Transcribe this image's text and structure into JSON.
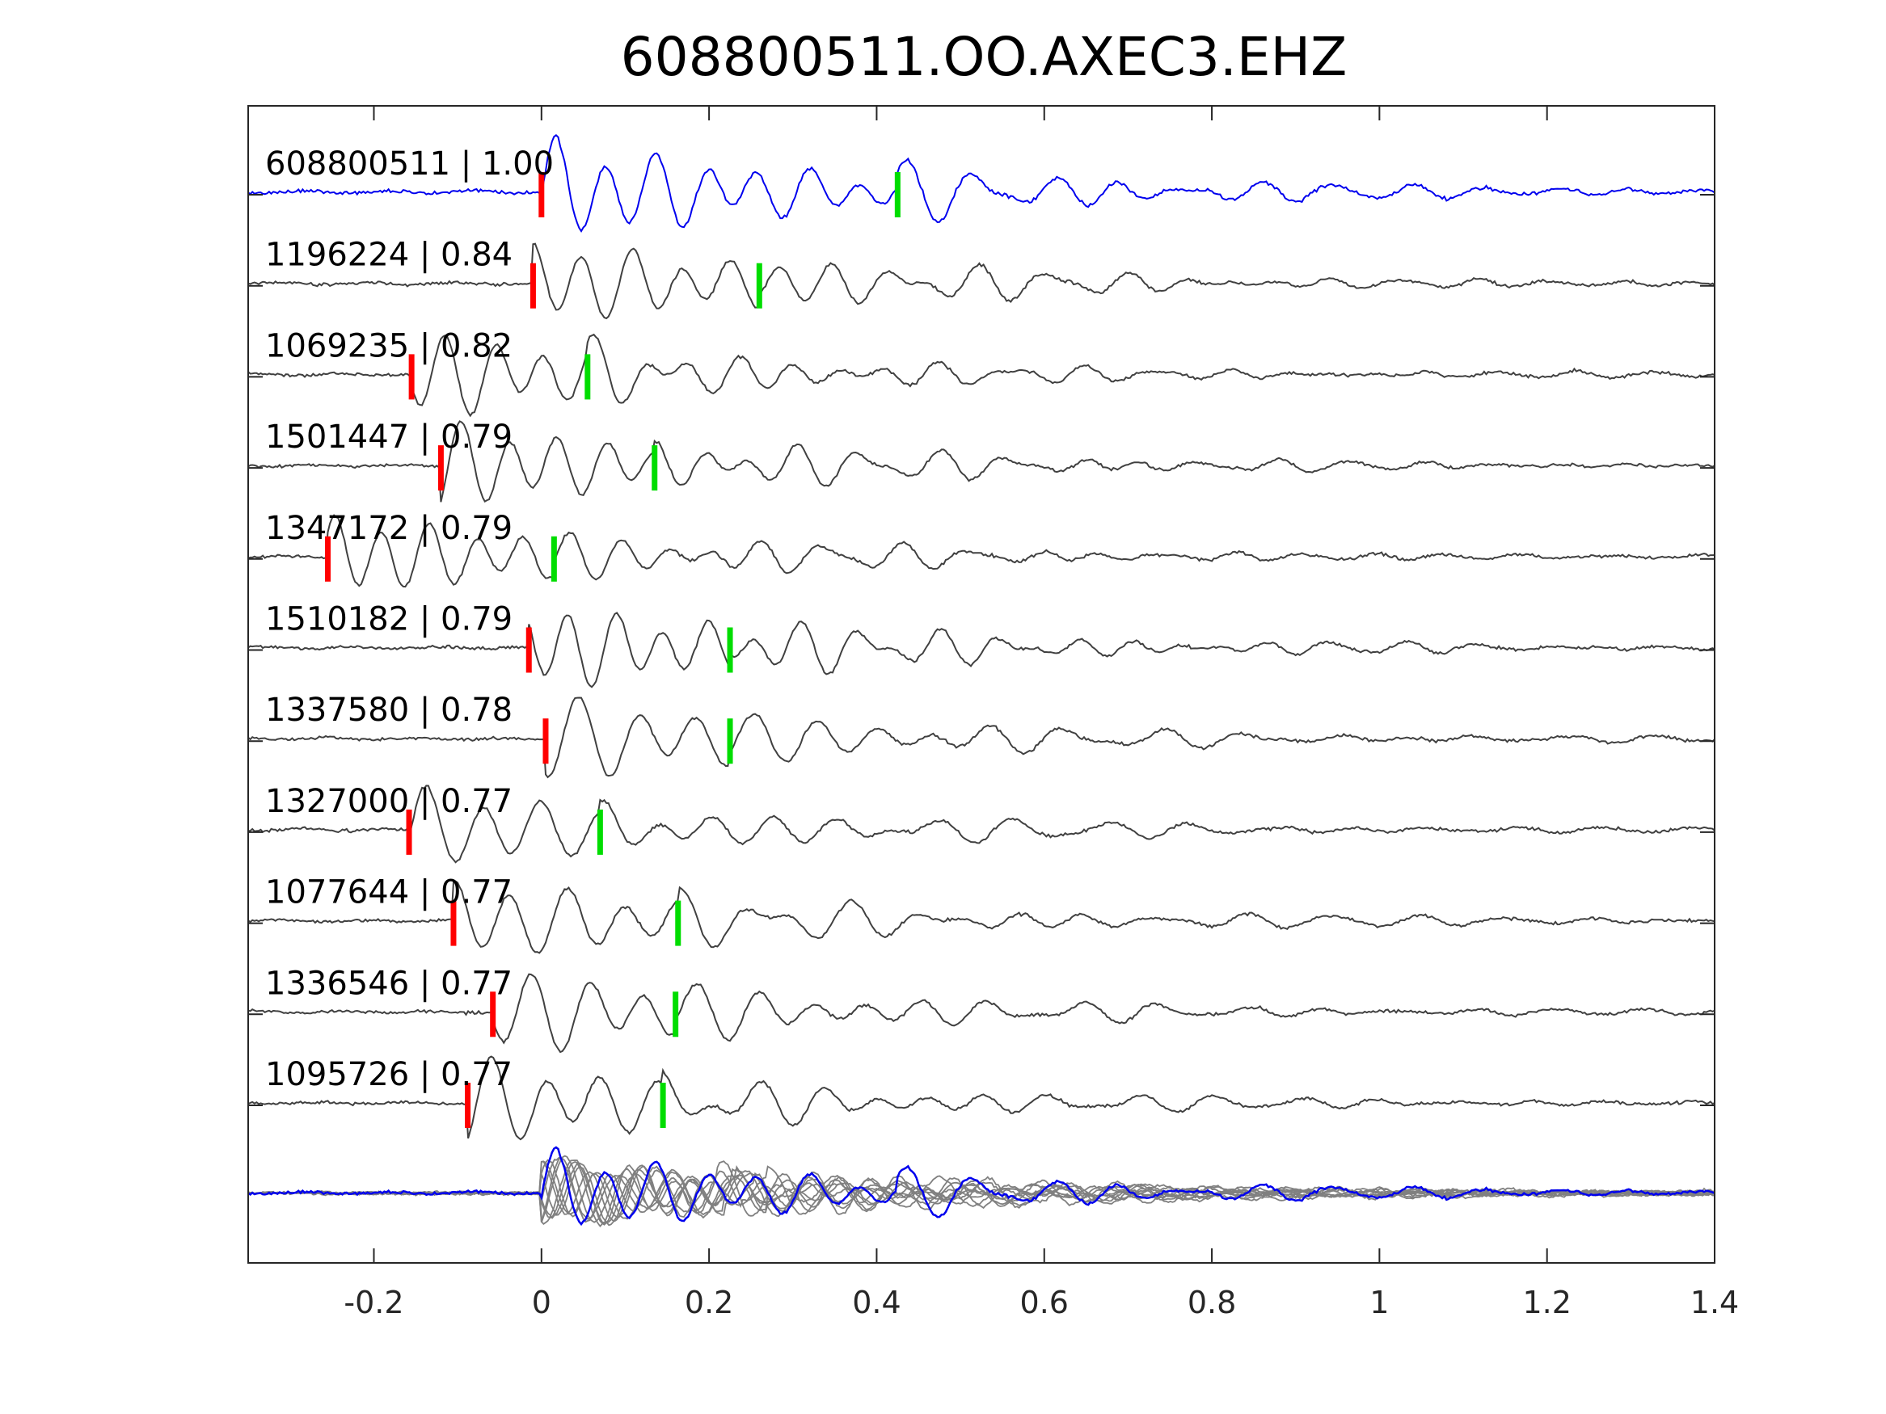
{
  "chart_data": {
    "type": "line",
    "title": "608800511.OO.AXEC3.EHZ",
    "xlabel": "",
    "ylabel": "",
    "xlim": [
      -0.35,
      1.4
    ],
    "xticks": [
      -0.2,
      0,
      0.2,
      0.4,
      0.6,
      0.8,
      1,
      1.2,
      1.4
    ],
    "xtick_labels": [
      "-0.2",
      "0",
      "0.2",
      "0.4",
      "0.6",
      "0.8",
      "1",
      "1.2",
      "1.4"
    ],
    "grid": false,
    "colors": {
      "master": "#0000ee",
      "trace": "#404040",
      "stack": "#808080",
      "p_pick": "#ff0000",
      "s_pick": "#00dd00",
      "axis": "#262626"
    },
    "traces": [
      {
        "label": "608800511 | 1.00",
        "id": "608800511",
        "cc": 1.0,
        "p_pick": 0.0,
        "s_pick": 0.425,
        "master": true
      },
      {
        "label": "1196224 | 0.84",
        "id": "1196224",
        "cc": 0.84,
        "p_pick": -0.01,
        "s_pick": 0.26
      },
      {
        "label": "1069235 | 0.82",
        "id": "1069235",
        "cc": 0.82,
        "p_pick": -0.155,
        "s_pick": 0.055
      },
      {
        "label": "1501447 | 0.79",
        "id": "1501447",
        "cc": 0.79,
        "p_pick": -0.12,
        "s_pick": 0.135
      },
      {
        "label": "1347172 | 0.79",
        "id": "1347172",
        "cc": 0.79,
        "p_pick": -0.255,
        "s_pick": 0.015
      },
      {
        "label": "1510182 | 0.79",
        "id": "1510182",
        "cc": 0.79,
        "p_pick": -0.015,
        "s_pick": 0.225
      },
      {
        "label": "1337580 | 0.78",
        "id": "1337580",
        "cc": 0.78,
        "p_pick": 0.005,
        "s_pick": 0.225
      },
      {
        "label": "1327000 | 0.77",
        "id": "1327000",
        "cc": 0.77,
        "p_pick": -0.158,
        "s_pick": 0.07
      },
      {
        "label": "1077644 | 0.77",
        "id": "1077644",
        "cc": 0.77,
        "p_pick": -0.105,
        "s_pick": 0.163
      },
      {
        "label": "1336546 | 0.77",
        "id": "1336546",
        "cc": 0.77,
        "p_pick": -0.058,
        "s_pick": 0.16
      },
      {
        "label": "1095726 | 0.77",
        "id": "1095726",
        "cc": 0.77,
        "p_pick": -0.088,
        "s_pick": 0.145
      }
    ],
    "stack": {
      "description_note": "overlay of all traces",
      "master_overlay": true
    }
  }
}
